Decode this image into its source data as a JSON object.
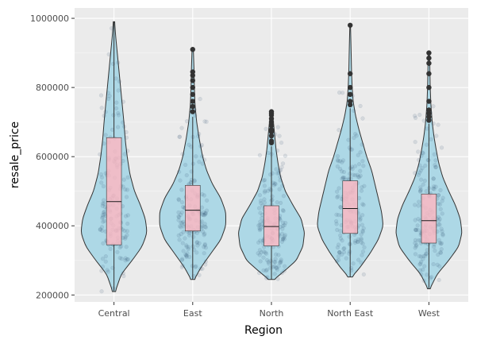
{
  "chart_data": {
    "type": "violin",
    "xlabel": "Region",
    "ylabel": "resale_price",
    "categories": [
      "Central",
      "East",
      "North",
      "North East",
      "West"
    ],
    "y_ticks": [
      {
        "value": 200000,
        "label": "200000"
      },
      {
        "value": 400000,
        "label": "400000"
      },
      {
        "value": 600000,
        "label": "600000"
      },
      {
        "value": 800000,
        "label": "800000"
      },
      {
        "value": 1000000,
        "label": "1000000"
      }
    ],
    "ylim": [
      180000,
      1030000
    ],
    "grid": true,
    "legend": "none",
    "colors": {
      "panel": "#ebebeb",
      "grid_major": "#ffffff",
      "grid_minor": "#f5f5f5",
      "violin_fill": "#add8e6",
      "box_fill": "#ffb6c1",
      "outline": "#333333",
      "jitter": "#2b4a6f"
    },
    "groups": [
      {
        "name": "Central",
        "q1": 345000,
        "median": 470000,
        "q3": 655000,
        "whisker_low": 210000,
        "whisker_high": 990000,
        "outliers": [],
        "density": [
          [
            210000,
            0.04
          ],
          [
            260000,
            0.22
          ],
          [
            300000,
            0.55
          ],
          [
            340000,
            0.85
          ],
          [
            380000,
            1.0
          ],
          [
            420000,
            0.95
          ],
          [
            460000,
            0.8
          ],
          [
            500000,
            0.62
          ],
          [
            550000,
            0.48
          ],
          [
            600000,
            0.4
          ],
          [
            650000,
            0.34
          ],
          [
            700000,
            0.3
          ],
          [
            750000,
            0.25
          ],
          [
            800000,
            0.2
          ],
          [
            850000,
            0.15
          ],
          [
            900000,
            0.1
          ],
          [
            950000,
            0.05
          ],
          [
            990000,
            0.02
          ]
        ]
      },
      {
        "name": "East",
        "q1": 385000,
        "median": 445000,
        "q3": 517000,
        "whisker_low": 245000,
        "whisker_high": 715000,
        "outliers": [
          730000,
          745000,
          760000,
          780000,
          800000,
          820000,
          835000,
          845000,
          910000
        ],
        "density": [
          [
            245000,
            0.05
          ],
          [
            280000,
            0.25
          ],
          [
            320000,
            0.55
          ],
          [
            360000,
            0.85
          ],
          [
            400000,
            1.0
          ],
          [
            440000,
            1.0
          ],
          [
            480000,
            0.85
          ],
          [
            520000,
            0.6
          ],
          [
            560000,
            0.42
          ],
          [
            600000,
            0.3
          ],
          [
            650000,
            0.2
          ],
          [
            700000,
            0.12
          ],
          [
            750000,
            0.07
          ],
          [
            800000,
            0.05
          ],
          [
            850000,
            0.04
          ],
          [
            910000,
            0.02
          ]
        ]
      },
      {
        "name": "North",
        "q1": 342000,
        "median": 398000,
        "q3": 458000,
        "whisker_low": 245000,
        "whisker_high": 630000,
        "outliers": [
          640000,
          645000,
          660000,
          672000,
          678000,
          690000,
          700000,
          710000,
          720000,
          725000,
          730000
        ],
        "density": [
          [
            245000,
            0.08
          ],
          [
            270000,
            0.4
          ],
          [
            300000,
            0.75
          ],
          [
            340000,
            0.95
          ],
          [
            380000,
            1.0
          ],
          [
            420000,
            0.9
          ],
          [
            460000,
            0.65
          ],
          [
            500000,
            0.42
          ],
          [
            540000,
            0.28
          ],
          [
            580000,
            0.2
          ],
          [
            620000,
            0.14
          ],
          [
            660000,
            0.1
          ],
          [
            700000,
            0.06
          ],
          [
            730000,
            0.03
          ]
        ]
      },
      {
        "name": "North East",
        "q1": 378000,
        "median": 450000,
        "q3": 530000,
        "whisker_low": 252000,
        "whisker_high": 740000,
        "outliers": [
          750000,
          760000,
          780000,
          800000,
          840000,
          980000
        ],
        "density": [
          [
            252000,
            0.05
          ],
          [
            280000,
            0.3
          ],
          [
            320000,
            0.6
          ],
          [
            360000,
            0.85
          ],
          [
            400000,
            1.0
          ],
          [
            440000,
            0.95
          ],
          [
            480000,
            0.85
          ],
          [
            520000,
            0.75
          ],
          [
            560000,
            0.65
          ],
          [
            600000,
            0.5
          ],
          [
            640000,
            0.38
          ],
          [
            680000,
            0.26
          ],
          [
            720000,
            0.16
          ],
          [
            760000,
            0.09
          ],
          [
            800000,
            0.06
          ],
          [
            850000,
            0.04
          ],
          [
            900000,
            0.03
          ],
          [
            980000,
            0.01
          ]
        ]
      },
      {
        "name": "West",
        "q1": 350000,
        "median": 415000,
        "q3": 492000,
        "whisker_low": 218000,
        "whisker_high": 695000,
        "outliers": [
          705000,
          715000,
          725000,
          735000,
          760000,
          800000,
          840000,
          870000,
          885000,
          900000
        ],
        "density": [
          [
            218000,
            0.03
          ],
          [
            260000,
            0.25
          ],
          [
            300000,
            0.6
          ],
          [
            340000,
            0.9
          ],
          [
            380000,
            1.0
          ],
          [
            420000,
            0.95
          ],
          [
            460000,
            0.8
          ],
          [
            500000,
            0.6
          ],
          [
            540000,
            0.42
          ],
          [
            580000,
            0.3
          ],
          [
            620000,
            0.22
          ],
          [
            660000,
            0.15
          ],
          [
            700000,
            0.1
          ],
          [
            750000,
            0.06
          ],
          [
            800000,
            0.04
          ],
          [
            850000,
            0.03
          ],
          [
            900000,
            0.02
          ]
        ]
      }
    ]
  }
}
